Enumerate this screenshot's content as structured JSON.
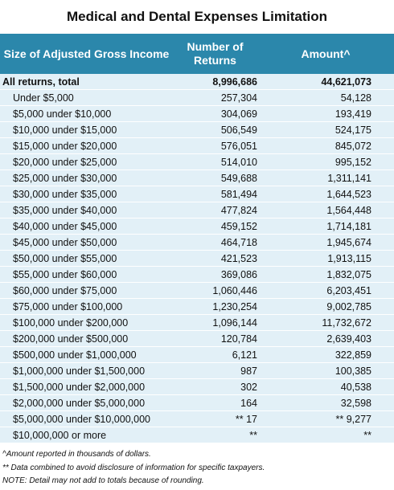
{
  "header": {
    "title": "Medical and Dental Expenses Limitation"
  },
  "table": {
    "columns": [
      "Size of Adjusted Gross Income",
      "Number of Returns",
      "Amount^"
    ],
    "total_row": [
      "All returns, total",
      "8,996,686",
      "44,621,073"
    ],
    "rows": [
      [
        "Under $5,000",
        "257,304",
        "54,128"
      ],
      [
        "$5,000 under $10,000",
        "304,069",
        "193,419"
      ],
      [
        "$10,000 under $15,000",
        "506,549",
        "524,175"
      ],
      [
        "$15,000 under $20,000",
        "576,051",
        "845,072"
      ],
      [
        "$20,000 under $25,000",
        "514,010",
        "995,152"
      ],
      [
        "$25,000 under $30,000",
        "549,688",
        "1,311,141"
      ],
      [
        "$30,000 under $35,000",
        "581,494",
        "1,644,523"
      ],
      [
        "$35,000 under $40,000",
        "477,824",
        "1,564,448"
      ],
      [
        "$40,000 under $45,000",
        "459,152",
        "1,714,181"
      ],
      [
        "$45,000 under $50,000",
        "464,718",
        "1,945,674"
      ],
      [
        "$50,000 under $55,000",
        "421,523",
        "1,913,115"
      ],
      [
        "$55,000 under $60,000",
        "369,086",
        "1,832,075"
      ],
      [
        "$60,000 under $75,000",
        "1,060,446",
        "6,203,451"
      ],
      [
        "$75,000 under $100,000",
        "1,230,254",
        "9,002,785"
      ],
      [
        "$100,000 under $200,000",
        "1,096,144",
        "11,732,672"
      ],
      [
        "$200,000 under $500,000",
        "120,784",
        "2,639,403"
      ],
      [
        "$500,000 under $1,000,000",
        "6,121",
        "322,859"
      ],
      [
        "$1,000,000 under $1,500,000",
        "987",
        "100,385"
      ],
      [
        "$1,500,000 under $2,000,000",
        "302",
        "40,538"
      ],
      [
        "$2,000,000 under $5,000,000",
        "164",
        "32,598"
      ],
      [
        "$5,000,000 under $10,000,000",
        "** 17",
        "** 9,277"
      ],
      [
        "$10,000,000 or more",
        "**",
        "**"
      ]
    ]
  },
  "footnotes": [
    "^Amount reported in thousands of dollars.",
    "** Data combined to avoid disclosure of information for specific taxpayers.",
    "NOTE: Detail may not add to totals because of rounding."
  ]
}
